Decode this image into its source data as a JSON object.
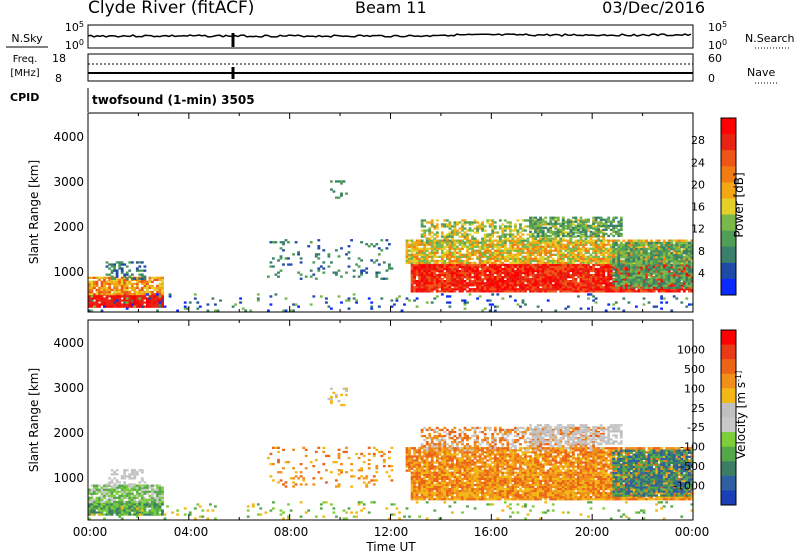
{
  "header": {
    "station": "Clyde River (fitACF)",
    "beam": "Beam 11",
    "date": "03/Dec/2016"
  },
  "nsky": {
    "left_label": "N.Sky",
    "left_ticks": [
      "10^5",
      "10^0"
    ],
    "right_label": "N.Search",
    "right_ticks": [
      "10^5",
      "10^0"
    ]
  },
  "freq": {
    "left_label_1": "Freq.",
    "left_label_2": "[MHz]",
    "left_ticks": [
      "18",
      "8"
    ],
    "right_label": "Nave",
    "right_ticks": [
      "60",
      "0"
    ]
  },
  "cpid": {
    "label": "CPID",
    "value": "twofsound (1-min) 3505"
  },
  "colors": {
    "power": [
      "#0a2aff",
      "#1e4aa8",
      "#3a7f6a",
      "#4f9d57",
      "#7bb84a",
      "#e5cf29",
      "#f4a614",
      "#f07c12",
      "#ee5516",
      "#e82314",
      "#ff0000"
    ],
    "velocity": [
      "#1a3fb6",
      "#2e5fa2",
      "#3b7e63",
      "#55a84a",
      "#7dcf3a",
      "#c8c8c8",
      "#c0c0c0",
      "#f3b816",
      "#f0901a",
      "#ec6418",
      "#e83a16",
      "#ff0000"
    ]
  },
  "chart_data": [
    {
      "type": "heatmap",
      "name": "power",
      "ylabel": "Slant Range [km]",
      "yticks": [
        "4000",
        "3000",
        "2000",
        "1000"
      ],
      "ylim": [
        180,
        4600
      ],
      "colorbar_label": "Power [dB]",
      "colorbar_ticks": [
        "28",
        "24",
        "20",
        "16",
        "12",
        "8",
        "4"
      ],
      "clim": [
        0,
        32
      ],
      "regions": [
        {
          "t": [
            0.0,
            3.0
          ],
          "r": [
            300,
            900
          ],
          "level": "strong"
        },
        {
          "t": [
            12.3,
            24.0
          ],
          "r": [
            600,
            1800
          ],
          "level": "strong"
        },
        {
          "t": [
            13.0,
            20.5
          ],
          "r": [
            1700,
            2200
          ],
          "level": "medium"
        },
        {
          "t": [
            7.0,
            12.0
          ],
          "r": [
            900,
            1800
          ],
          "level": "weak"
        }
      ]
    },
    {
      "type": "heatmap",
      "name": "velocity",
      "ylabel": "Slant Range [km]",
      "yticks": [
        "4000",
        "3000",
        "2000",
        "1000"
      ],
      "ylim": [
        180,
        4600
      ],
      "colorbar_label": "Velocity [m s^-1]",
      "colorbar_ticks": [
        "1000",
        "500",
        "100",
        "25",
        "-25",
        "-100",
        "-500",
        "-1000"
      ],
      "regions": [
        {
          "t": [
            0.0,
            3.0
          ],
          "r": [
            300,
            1200
          ],
          "level": "slow"
        },
        {
          "t": [
            12.3,
            24.0
          ],
          "r": [
            600,
            2000
          ],
          "level": "away"
        },
        {
          "t": [
            17.5,
            21.0
          ],
          "r": [
            1900,
            2300
          ],
          "level": "ground"
        },
        {
          "t": [
            21.0,
            24.0
          ],
          "r": [
            700,
            1800
          ],
          "level": "toward"
        }
      ]
    }
  ],
  "time_axis": {
    "ticks": [
      "00:00",
      "04:00",
      "08:00",
      "12:00",
      "16:00",
      "20:00",
      "00:00"
    ],
    "xlabel": "Time UT"
  }
}
